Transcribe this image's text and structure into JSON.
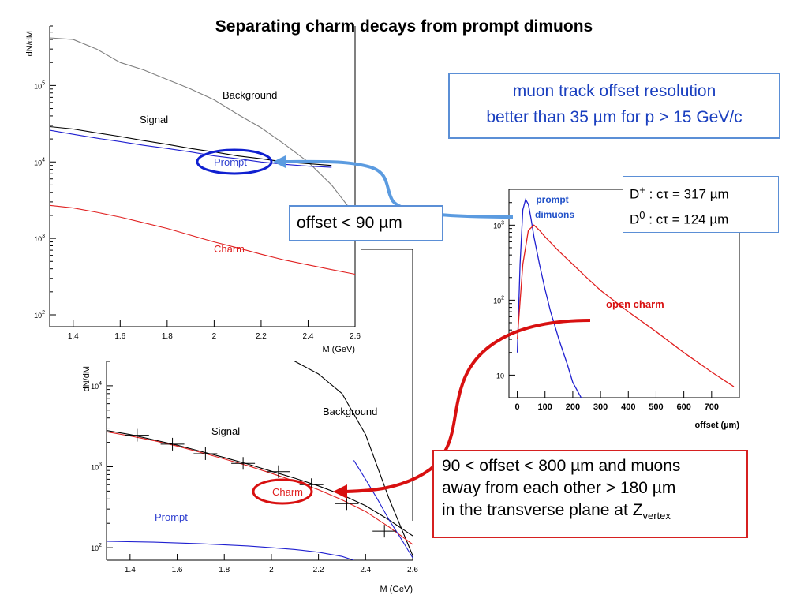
{
  "title": "Separating charm decays from prompt dimuons",
  "callouts": {
    "resolution_line1": "muon track offset resolution",
    "resolution_line2": "better than 35 µm for p > 15 GeV/c",
    "lifetime_dplus_label": "D",
    "lifetime_dplus_sup": "+",
    "lifetime_dplus_value": " : cτ = 317 µm",
    "lifetime_d0_label": "D",
    "lifetime_d0_sup": "0",
    "lifetime_d0_value": " : cτ = 124 µm",
    "offset_cut": "offset < 90 µm",
    "charm_cut_line1": "90 < offset < 800 µm and muons",
    "charm_cut_line2": "away from each other > 180 µm",
    "charm_cut_line3": "in the transverse plane at Z",
    "charm_cut_sub": "vertex"
  },
  "colors": {
    "background": "#808080",
    "signal": "#000000",
    "prompt": "#2020d0",
    "charm": "#e02020",
    "arrow_blue": "#5b9be0",
    "arrow_red": "#d81010",
    "box_blue": "#5b8fd6",
    "box_red": "#d62020"
  },
  "chart_data": [
    {
      "type": "line",
      "yscale": "log",
      "xlabel": "M (GeV)",
      "ylabel": "dN/dM",
      "xlim": [
        1.3,
        2.6
      ],
      "ylim": [
        70,
        600000
      ],
      "x_ticks": [
        "1.4",
        "1.6",
        "1.8",
        "2",
        "2.2",
        "2.4",
        "2.6"
      ],
      "y_ticks": [
        {
          "base": "10",
          "exp": "2",
          "value": 100
        },
        {
          "base": "10",
          "exp": "3",
          "value": 1000
        },
        {
          "base": "10",
          "exp": "4",
          "value": 10000
        },
        {
          "base": "10",
          "exp": "5",
          "value": 100000
        }
      ],
      "series": [
        {
          "name": "Background",
          "color": "#808080",
          "x": [
            1.3,
            1.4,
            1.5,
            1.6,
            1.7,
            1.8,
            1.9,
            2.0,
            2.1,
            2.2,
            2.3,
            2.4,
            2.5,
            2.6
          ],
          "y": [
            420000,
            400000,
            300000,
            200000,
            160000,
            120000,
            90000,
            65000,
            42000,
            28000,
            17000,
            10000,
            5000,
            2000
          ]
        },
        {
          "name": "Signal",
          "color": "#000000",
          "x": [
            1.3,
            1.4,
            1.5,
            1.6,
            1.7,
            1.8,
            1.9,
            2.0,
            2.1,
            2.2,
            2.3,
            2.4,
            2.5
          ],
          "y": [
            29000,
            27000,
            24000,
            21500,
            19000,
            17000,
            15000,
            13500,
            12000,
            11000,
            10000,
            9500,
            9000
          ]
        },
        {
          "name": "Prompt",
          "color": "#2020d0",
          "x": [
            1.3,
            1.4,
            1.5,
            1.6,
            1.7,
            1.8,
            1.9,
            2.0,
            2.1,
            2.2,
            2.3,
            2.4,
            2.5
          ],
          "y": [
            26000,
            23000,
            20500,
            18500,
            16500,
            15000,
            13500,
            12000,
            11000,
            10000,
            9300,
            8800,
            8500
          ]
        },
        {
          "name": "Charm",
          "color": "#e02020",
          "x": [
            1.3,
            1.4,
            1.5,
            1.6,
            1.7,
            1.8,
            1.9,
            2.0,
            2.1,
            2.2,
            2.3,
            2.4,
            2.5,
            2.6
          ],
          "y": [
            2700,
            2500,
            2200,
            1900,
            1600,
            1350,
            1100,
            900,
            750,
            620,
            520,
            450,
            390,
            340
          ]
        }
      ],
      "labels": {
        "background": "Background",
        "signal": "Signal",
        "prompt": "Prompt",
        "charm": "Charm"
      }
    },
    {
      "type": "line",
      "yscale": "log",
      "xlabel": "M (GeV)",
      "ylabel": "dN/dM",
      "xlim": [
        1.3,
        2.6
      ],
      "ylim": [
        70,
        20000
      ],
      "x_ticks": [
        "1.4",
        "1.6",
        "1.8",
        "2",
        "2.2",
        "2.4",
        "2.6"
      ],
      "y_ticks": [
        {
          "base": "10",
          "exp": "2",
          "value": 100
        },
        {
          "base": "10",
          "exp": "3",
          "value": 1000
        },
        {
          "base": "10",
          "exp": "4",
          "value": 10000
        }
      ],
      "series": [
        {
          "name": "Background",
          "color": "#000000",
          "x": [
            2.0,
            2.1,
            2.2,
            2.3,
            2.4,
            2.5,
            2.6
          ],
          "y": [
            25000,
            20000,
            14000,
            8000,
            2500,
            400,
            80
          ]
        },
        {
          "name": "Signal",
          "color": "#000000",
          "x": [
            1.3,
            1.4,
            1.5,
            1.6,
            1.7,
            1.8,
            1.9,
            2.0,
            2.1,
            2.2,
            2.3,
            2.4,
            2.5,
            2.6
          ],
          "y": [
            2800,
            2500,
            2150,
            1850,
            1550,
            1300,
            1080,
            880,
            720,
            580,
            450,
            330,
            220,
            140
          ]
        },
        {
          "name": "Charm",
          "color": "#e02020",
          "x": [
            1.3,
            1.4,
            1.5,
            1.6,
            1.7,
            1.8,
            1.9,
            2.0,
            2.1,
            2.2,
            2.3,
            2.4,
            2.5,
            2.6
          ],
          "y": [
            2700,
            2400,
            2100,
            1800,
            1500,
            1250,
            1030,
            830,
            660,
            520,
            390,
            280,
            180,
            110
          ]
        },
        {
          "name": "Prompt",
          "color": "#2020d0",
          "x": [
            1.3,
            1.5,
            1.7,
            1.9,
            2.0,
            2.1,
            2.2,
            2.3,
            2.35
          ],
          "y": [
            120,
            117,
            112,
            105,
            100,
            95,
            88,
            78,
            70
          ]
        },
        {
          "name": "Background",
          "color": "#2020d0",
          "x": [
            2.35,
            2.4,
            2.45,
            2.5,
            2.55,
            2.6
          ],
          "y": [
            1200,
            700,
            400,
            220,
            130,
            75
          ]
        }
      ],
      "points": {
        "x": [
          1.43,
          1.58,
          1.72,
          1.88,
          2.03,
          2.17,
          2.32,
          2.48
        ],
        "y": [
          2450,
          1900,
          1450,
          1100,
          870,
          600,
          350,
          160
        ]
      },
      "labels": {
        "background": "Background",
        "signal": "Signal",
        "prompt": "Prompt",
        "charm": "Charm"
      }
    },
    {
      "type": "line",
      "yscale": "log",
      "xlabel": "offset (µm)",
      "xlim": [
        -30,
        800
      ],
      "ylim": [
        5,
        3000
      ],
      "x_ticks": [
        "0",
        "100",
        "200",
        "300",
        "400",
        "500",
        "600",
        "700"
      ],
      "y_ticks": [
        {
          "base": "10",
          "exp": "",
          "value": 10
        },
        {
          "base": "10",
          "exp": "2",
          "value": 100
        },
        {
          "base": "10",
          "exp": "3",
          "value": 1000
        }
      ],
      "series": [
        {
          "name": "prompt dimuons",
          "color": "#2020d0",
          "x": [
            0,
            10,
            20,
            30,
            40,
            50,
            60,
            80,
            100,
            120,
            150,
            180,
            200,
            230
          ],
          "y": [
            20,
            300,
            1600,
            2200,
            1900,
            1200,
            700,
            300,
            140,
            70,
            30,
            14,
            8,
            5
          ]
        },
        {
          "name": "open charm",
          "color": "#e02020",
          "x": [
            0,
            20,
            40,
            60,
            80,
            100,
            150,
            200,
            250,
            300,
            400,
            500,
            600,
            700,
            780
          ],
          "y": [
            30,
            300,
            850,
            1000,
            850,
            700,
            450,
            300,
            200,
            135,
            70,
            38,
            20,
            11,
            7
          ]
        }
      ],
      "labels": {
        "prompt_line1": "prompt",
        "prompt_line2": "dimuons",
        "charm": "open charm"
      }
    }
  ]
}
